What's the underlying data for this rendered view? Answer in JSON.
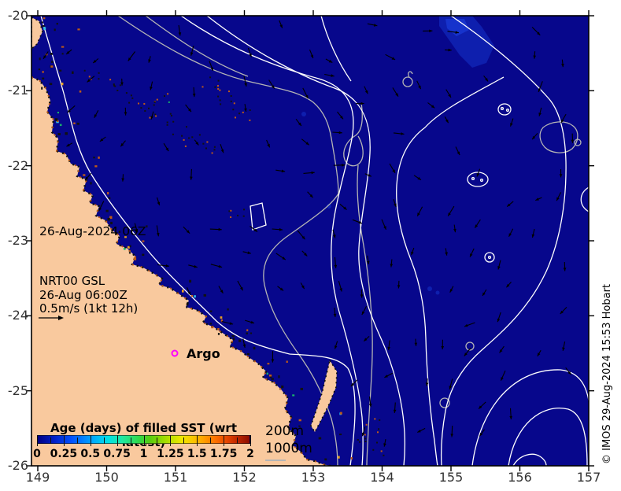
{
  "figure": {
    "datetime_label": "26-Aug-2024 06Z",
    "velocity_key": {
      "line1": "NRT00 GSL",
      "line2": "26-Aug 06:00Z",
      "line3": "0.5m/s (1kt 12h)"
    },
    "argo_label": "Argo",
    "contour_key": {
      "c200": "200m",
      "c1000": "1000m"
    },
    "credit": "© IMOS 29-Aug-2024 15:53 Hobart"
  },
  "axes": {
    "x_ticks": [
      "149",
      "150",
      "151",
      "152",
      "153",
      "154",
      "155",
      "156",
      "157"
    ],
    "y_ticks": [
      "-20",
      "-21",
      "-22",
      "-23",
      "-24",
      "-25",
      "-26"
    ]
  },
  "colorbar": {
    "title": "Age (days) of filled SST (wrt latest)",
    "tick_labels": [
      "0",
      "0.25",
      "0.5",
      "0.75",
      "1",
      "1.25",
      "1.5",
      "1.75",
      "2"
    ]
  },
  "colors": {
    "ocean": "#07078c",
    "ocean_patch": "#0e1fae",
    "ocean_patch_bright": "#1633cc",
    "land": "#f9c99e",
    "contour_white": "#ffffff",
    "contour_gray": "#b5b5b5",
    "arrow": "#000000",
    "argo_marker": "#ff00ff",
    "coast_speckle": "#bf5a17"
  }
}
